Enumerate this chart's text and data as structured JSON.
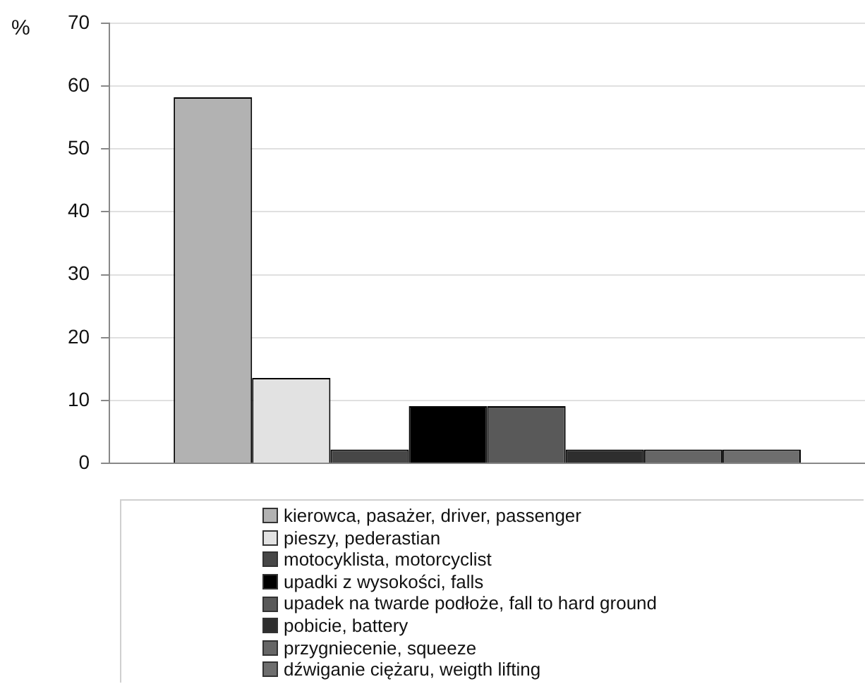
{
  "chart_data": {
    "type": "bar",
    "ylabel": "%",
    "categories": [
      null
    ],
    "series": [
      {
        "name": "kierowca, pasażer, driver, passenger",
        "color": "#b2b2b2",
        "values": [
          58.2
        ]
      },
      {
        "name": "pieszy, pederastian",
        "color": "#e2e2e2",
        "values": [
          13.6
        ]
      },
      {
        "name": "motocyklista, motorcyclist",
        "color": "#474747",
        "values": [
          2.2
        ]
      },
      {
        "name": "upadki z wysokości, falls",
        "color": "#000000",
        "values": [
          9.1
        ]
      },
      {
        "name": "upadek na twarde podłoże, fall to hard ground",
        "color": "#595959",
        "values": [
          9.1
        ]
      },
      {
        "name": "pobicie, battery",
        "color": "#2e2e2e",
        "values": [
          2.2
        ]
      },
      {
        "name": "przygniecenie, squeeze",
        "color": "#666666",
        "values": [
          2.2
        ]
      },
      {
        "name": "dźwiganie ciężaru, weigth lifting",
        "color": "#6e6e6e",
        "values": [
          2.2
        ]
      }
    ],
    "ylim": [
      0,
      70
    ],
    "yticks": [
      0,
      10,
      20,
      30,
      40,
      50,
      60,
      70
    ],
    "grid": "y",
    "legend": "bottom"
  }
}
